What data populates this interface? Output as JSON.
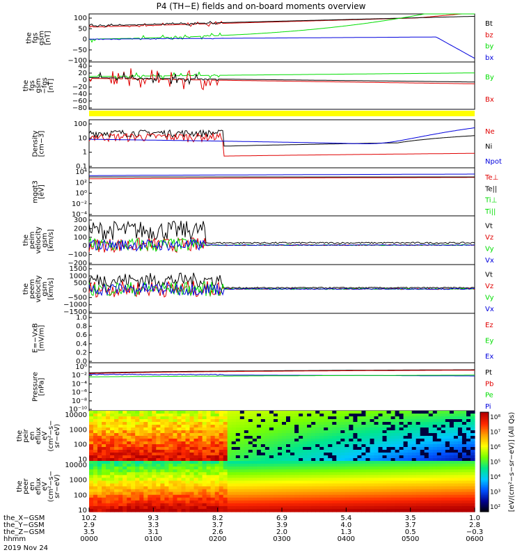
{
  "title": "P4 (TH−E) fields and on-board moments overview",
  "colors": {
    "black": "#000000",
    "red": "#e00000",
    "green": "#00dd00",
    "blue": "#0000dd",
    "yellow": "#ffff00"
  },
  "chart_data": [
    {
      "type": "line",
      "ylabel": [
        "the",
        "fgs",
        "gsm",
        "[nT]"
      ],
      "ylim": [
        -100,
        100
      ],
      "ticks": [
        "100",
        "50",
        "0",
        "−50",
        "−100"
      ],
      "series": [
        {
          "name": "Bt",
          "color": "black"
        },
        {
          "name": "bz",
          "color": "red"
        },
        {
          "name": "by",
          "color": "green"
        },
        {
          "name": "bx",
          "color": "blue"
        }
      ]
    },
    {
      "type": "line",
      "ylabel": [
        "the",
        "fgs",
        "gsm",
        "−fgs",
        "[nT]"
      ],
      "ylim": [
        -90,
        40
      ],
      "ticks": [
        "40",
        "20",
        "0",
        "−20",
        "−40",
        "−60",
        "−80"
      ],
      "series": [
        {
          "name": "By",
          "color": "green"
        },
        {
          "name": "Bx",
          "color": "red"
        }
      ]
    },
    {
      "type": "line",
      "ylabel": [
        "Density",
        "[cm−3]"
      ],
      "ylim": [
        0.1,
        100
      ],
      "log": true,
      "ticks": [
        "100",
        "10",
        "1",
        "0.1"
      ],
      "series": [
        {
          "name": "Ne",
          "color": "red"
        },
        {
          "name": "Ni",
          "color": "black"
        },
        {
          "name": "Npot",
          "color": "blue"
        }
      ]
    },
    {
      "type": "line",
      "ylabel": [
        "mgqt3",
        "[eV]"
      ],
      "ylim": [
        0.0001,
        10000.0
      ],
      "log": true,
      "ticks": [
        "10⁴",
        "10²",
        "10⁰",
        "10⁻²",
        "10⁻⁴"
      ],
      "series": [
        {
          "name": "Te⊥",
          "color": "red"
        },
        {
          "name": "Te||",
          "color": "black"
        },
        {
          "name": "Ti⊥",
          "color": "green"
        },
        {
          "name": "Ti||",
          "color": "green"
        }
      ]
    },
    {
      "type": "line",
      "ylabel": [
        "the",
        "peim",
        "velocity",
        "gsm",
        "[km/s]"
      ],
      "ylim": [
        -200,
        300
      ],
      "ticks": [
        "300",
        "200",
        "100",
        "0",
        "−100",
        "−200"
      ],
      "series": [
        {
          "name": "Vt",
          "color": "black"
        },
        {
          "name": "Vz",
          "color": "red"
        },
        {
          "name": "Vy",
          "color": "green"
        },
        {
          "name": "Vx",
          "color": "blue"
        }
      ]
    },
    {
      "type": "line",
      "ylabel": [
        "the",
        "peem",
        "velocity",
        "gsm",
        "[km/s]"
      ],
      "ylim": [
        -1500,
        1500
      ],
      "ticks": [
        "1500",
        "1000",
        "500",
        "0",
        "−500",
        "−1000",
        "−1500"
      ],
      "series": [
        {
          "name": "Vt",
          "color": "black"
        },
        {
          "name": "Vz",
          "color": "red"
        },
        {
          "name": "Vy",
          "color": "green"
        },
        {
          "name": "Vx",
          "color": "blue"
        }
      ]
    },
    {
      "type": "line",
      "ylabel": [
        "E=−VxB",
        "[mV/m]"
      ],
      "ylim": [
        0,
        1
      ],
      "ticks": [
        "1.0",
        "0.8",
        "0.6",
        "0.4",
        "0.2",
        "0.0"
      ],
      "series": [
        {
          "name": "Ez",
          "color": "red"
        },
        {
          "name": "Ey",
          "color": "green"
        },
        {
          "name": "Ex",
          "color": "blue"
        }
      ]
    },
    {
      "type": "line",
      "ylabel": [
        "Pressure",
        "[nPa]"
      ],
      "ylim": [
        1e-10,
        100.0
      ],
      "log": true,
      "ticks": [
        "10⁰",
        "10⁻²",
        "10⁻⁴",
        "10⁻⁶",
        "10⁻⁸",
        "10⁻¹⁰"
      ],
      "series": [
        {
          "name": "Pt",
          "color": "black"
        },
        {
          "name": "Pb",
          "color": "red"
        },
        {
          "name": "Pe",
          "color": "green"
        },
        {
          "name": "Pi",
          "color": "blue"
        }
      ]
    },
    {
      "type": "heatmap",
      "ylabel": [
        "the",
        "peir",
        "en",
        "eflux",
        "eV",
        "(cm²−s−",
        "sr−eV)"
      ],
      "ylim": [
        5,
        30000
      ],
      "log": true,
      "ticks": [
        "10000",
        "1000",
        "100",
        "10"
      ]
    },
    {
      "type": "heatmap",
      "ylabel": [
        "the",
        "peer",
        "en",
        "eflux",
        "eV",
        "(cm²−s−",
        "sr−eV)"
      ],
      "ylim": [
        5,
        30000
      ],
      "log": true,
      "ticks": [
        "10000",
        "1000",
        "100",
        "10"
      ]
    }
  ],
  "colorbar": {
    "ticks": [
      "10⁸",
      "10⁷",
      "10⁶",
      "10⁵",
      "10⁴",
      "10³",
      "10²"
    ],
    "label": "[eV/(cm²−s−sr−eV)] (All Qs)"
  },
  "xaxis": {
    "rows": [
      {
        "name": "the_X−GSM",
        "values": [
          "10.2",
          "9.3",
          "8.2",
          "6.9",
          "5.4",
          "3.5",
          "1.0"
        ]
      },
      {
        "name": "the_Y−GSM",
        "values": [
          "2.9",
          "3.3",
          "3.7",
          "3.9",
          "4.0",
          "3.7",
          "2.8"
        ]
      },
      {
        "name": "the_Z−GSM",
        "values": [
          "3.5",
          "3.1",
          "2.6",
          "2.0",
          "1.3",
          "0.5",
          "−0.3"
        ]
      },
      {
        "name": "hhmm",
        "values": [
          "0000",
          "0100",
          "0200",
          "0300",
          "0400",
          "0500",
          "0600"
        ]
      }
    ],
    "date": "2019 Nov 24"
  }
}
